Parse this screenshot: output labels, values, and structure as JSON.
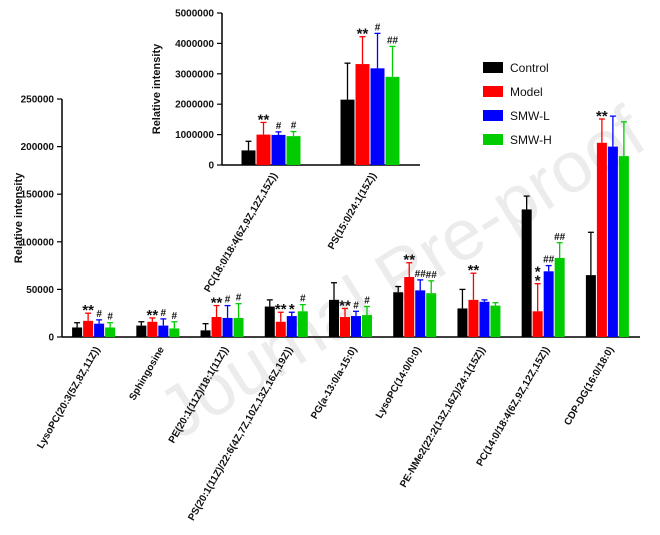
{
  "chart_data": [
    {
      "id": "main",
      "type": "bar",
      "ylabel": "Relative intensity",
      "ylim": [
        0,
        250000
      ],
      "yticks": [
        "0",
        "50000",
        "100000",
        "150000",
        "200000",
        "250000"
      ],
      "categories": [
        "LysoPC(20:3(5Z,8Z,11Z))",
        "Sphingosine",
        "PE(20:1(11Z)/18:1(11Z))",
        "PS(20:1(11Z)/22:6(4Z,7Z,10Z,13Z,16Z,19Z))",
        "PG(a-13:0/a-15:0)",
        "LysoPC(14:0/0:0)",
        "PE-NMe2(22:2(13Z,16Z)/24:1(15Z))",
        "PC(14:0/18:4(6Z,9Z,12Z,15Z))",
        "CDP-DG(16:0/18:0)"
      ],
      "series": [
        {
          "name": "Control",
          "values": [
            10000,
            12000,
            7000,
            32000,
            39000,
            47000,
            30000,
            134000,
            65000
          ],
          "errors": [
            5000,
            4000,
            7000,
            7000,
            18000,
            6000,
            20000,
            14000,
            45000
          ]
        },
        {
          "name": "Model",
          "values": [
            17000,
            16000,
            21000,
            16000,
            21000,
            63000,
            39000,
            27000,
            204000
          ],
          "errors": [
            8000,
            4000,
            12000,
            10000,
            9000,
            15000,
            28000,
            29000,
            25000
          ]
        },
        {
          "name": "SMW-L",
          "values": [
            14000,
            12000,
            20000,
            22000,
            22000,
            49000,
            37000,
            69000,
            200000
          ],
          "errors": [
            4000,
            7000,
            13000,
            4000,
            5000,
            11000,
            2000,
            6000,
            32000
          ]
        },
        {
          "name": "SMW-H",
          "values": [
            10000,
            9000,
            20000,
            27000,
            23000,
            46000,
            33000,
            83000,
            190000
          ],
          "errors": [
            5000,
            7000,
            15000,
            7000,
            9000,
            13000,
            3000,
            16000,
            36000
          ]
        }
      ],
      "annotations": [
        [
          "",
          "**",
          "#",
          "#"
        ],
        [
          "",
          "**",
          "#",
          "#"
        ],
        [
          "",
          "**",
          "#",
          "#"
        ],
        [
          "",
          "**",
          "*",
          "#"
        ],
        [
          "",
          "**",
          "#",
          "#"
        ],
        [
          "",
          "**",
          "##",
          "##"
        ],
        [
          "",
          "**",
          "",
          ""
        ],
        [
          "",
          "*\n*",
          "##",
          "##"
        ],
        [
          "",
          "**",
          "",
          ""
        ]
      ]
    },
    {
      "id": "inset",
      "type": "bar",
      "ylabel": "Relative intensity",
      "ylim": [
        0,
        5000000
      ],
      "yticks": [
        "0",
        "1000000",
        "2000000",
        "3000000",
        "4000000",
        "5000000"
      ],
      "categories": [
        "PC(18:0/18:4(6Z,9Z,12Z,15Z))",
        "PS(15:0/24:1(15Z))"
      ],
      "series": [
        {
          "name": "Control",
          "values": [
            480000,
            2150000
          ],
          "errors": [
            300000,
            1200000
          ]
        },
        {
          "name": "Model",
          "values": [
            1000000,
            3320000
          ],
          "errors": [
            400000,
            900000
          ]
        },
        {
          "name": "SMW-L",
          "values": [
            990000,
            3180000
          ],
          "errors": [
            100000,
            1150000
          ]
        },
        {
          "name": "SMW-H",
          "values": [
            950000,
            2900000
          ],
          "errors": [
            150000,
            1000000
          ]
        }
      ],
      "annotations": [
        [
          "",
          "**",
          "#",
          "#"
        ],
        [
          "",
          "**",
          "#",
          "##"
        ]
      ]
    }
  ],
  "legend": {
    "placement": "right",
    "items": [
      {
        "label": "Control",
        "color": "#000000"
      },
      {
        "label": "Model",
        "color": "#ff0000"
      },
      {
        "label": "SMW-L",
        "color": "#0000ff"
      },
      {
        "label": "SMW-H",
        "color": "#00cc00"
      }
    ]
  },
  "colors": {
    "Control": "#000000",
    "Model": "#ff0000",
    "SMW-L": "#0000ff",
    "SMW-H": "#00cc00"
  },
  "watermark": "Journal Pre-proof"
}
